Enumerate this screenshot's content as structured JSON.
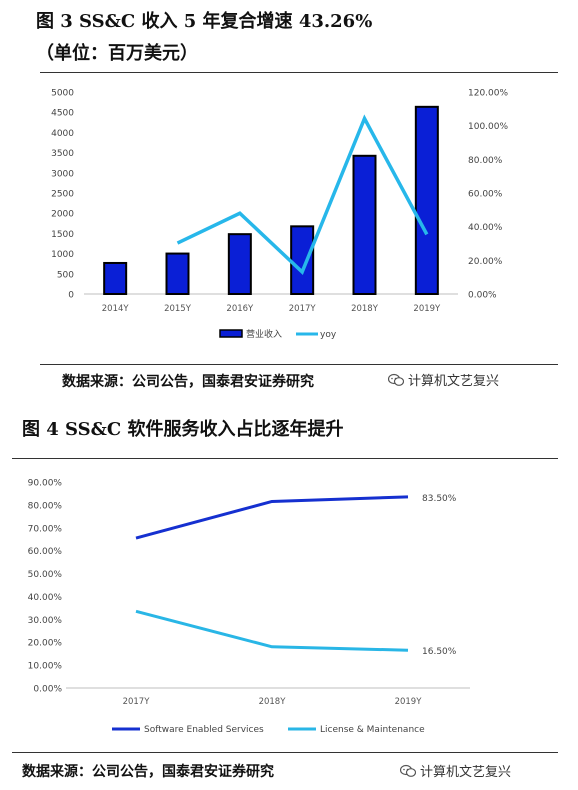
{
  "figure3": {
    "title_line1": "图 3 SS&C 收入 5 年复合增速 43.26%",
    "title_line2": "（单位：百万美元）",
    "source": "数据来源：公司公告，国泰君安证券研究",
    "watermark": "计算机文艺复兴",
    "chart_data": {
      "type": "bar",
      "categories": [
        "2014Y",
        "2015Y",
        "2016Y",
        "2017Y",
        "2018Y",
        "2019Y"
      ],
      "series": [
        {
          "name": "营业收入",
          "type": "bar",
          "axis": "left",
          "color": "#0a1fd6",
          "values": [
            768,
            1001,
            1481,
            1675,
            3421,
            4633
          ]
        },
        {
          "name": "yoy",
          "type": "line",
          "axis": "right",
          "color": "#27b7ea",
          "values": [
            null,
            0.3027,
            0.4797,
            0.131,
            1.0424,
            0.3543
          ]
        }
      ],
      "y_left": {
        "lim": [
          0,
          5000
        ],
        "ticks": [
          0,
          500,
          1000,
          1500,
          2000,
          2500,
          3000,
          3500,
          4000,
          4500,
          5000
        ],
        "tick_labels": [
          "0",
          "500",
          "1000",
          "1500",
          "2000",
          "2500",
          "3000",
          "3500",
          "4000",
          "4500",
          "5000"
        ]
      },
      "y_right": {
        "lim": [
          0,
          1.2
        ],
        "ticks": [
          0,
          0.2,
          0.4,
          0.6,
          0.8,
          1.0,
          1.2
        ],
        "tick_labels": [
          "0.00%",
          "20.00%",
          "40.00%",
          "60.00%",
          "80.00%",
          "100.00%",
          "120.00%"
        ]
      },
      "grid": false,
      "legend_position": "bottom"
    }
  },
  "figure4": {
    "title": "图 4 SS&C 软件服务收入占比逐年提升",
    "source": "数据来源：公司公告，国泰君安证券研究",
    "watermark": "计算机文艺复兴",
    "chart_data": {
      "type": "line",
      "categories": [
        "2017Y",
        "2018Y",
        "2019Y"
      ],
      "series": [
        {
          "name": "Software Enabled Services",
          "color": "#1530d0",
          "values": [
            0.655,
            0.815,
            0.835
          ],
          "end_label": "83.50%"
        },
        {
          "name": "License & Maintenance",
          "color": "#29b6e6",
          "values": [
            0.335,
            0.18,
            0.165
          ],
          "end_label": "16.50%"
        }
      ],
      "y": {
        "lim": [
          0,
          0.9
        ],
        "ticks": [
          0,
          0.1,
          0.2,
          0.3,
          0.4,
          0.5,
          0.6,
          0.7,
          0.8,
          0.9
        ],
        "tick_labels": [
          "0.00%",
          "10.00%",
          "20.00%",
          "30.00%",
          "40.00%",
          "50.00%",
          "60.00%",
          "70.00%",
          "80.00%",
          "90.00%"
        ]
      },
      "grid": false,
      "legend_position": "bottom"
    }
  }
}
